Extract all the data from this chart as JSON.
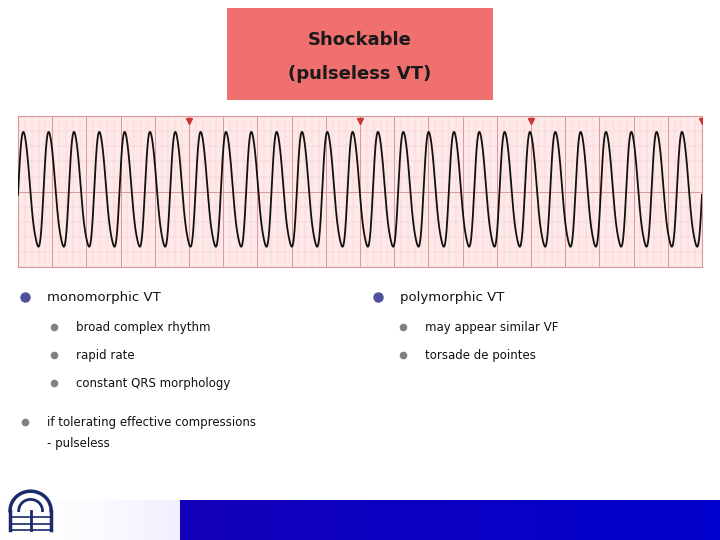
{
  "title_line1": "Shockable",
  "title_line2": "(pulseless VT)",
  "title_bg": "#F07070",
  "title_text_color": "#1a1a1a",
  "ecg_bg": "#FFE8E8",
  "ecg_grid_major": "#D89898",
  "ecg_grid_minor": "#F0C8C8",
  "ecg_line_color": "#111111",
  "slide_bg": "#FFFFFF",
  "bullet_color_main": "#5050A0",
  "bullet_color_sub": "#808080",
  "text_color": "#111111",
  "bottom_bar_color": "#3300BB",
  "separator_color": "#BBBBBB",
  "bullet1_main": "monomorphic VT",
  "bullet1_sub": [
    "broad complex rhythm",
    "rapid rate",
    "constant QRS morphology"
  ],
  "bullet2_main": "if tolerating effective compressions",
  "bullet2_sub": "- pulseless",
  "bullet3_main": "polymorphic VT",
  "bullet3_sub": [
    "may appear similar VF",
    "torsade de pointes"
  ],
  "ecg_tick_color": "#CC3333",
  "ecg_tick_positions": [
    0,
    25,
    50,
    75,
    100
  ],
  "vt_freq": 0.27,
  "vt_amplitude": 1.9,
  "n_ecg_points": 4000
}
